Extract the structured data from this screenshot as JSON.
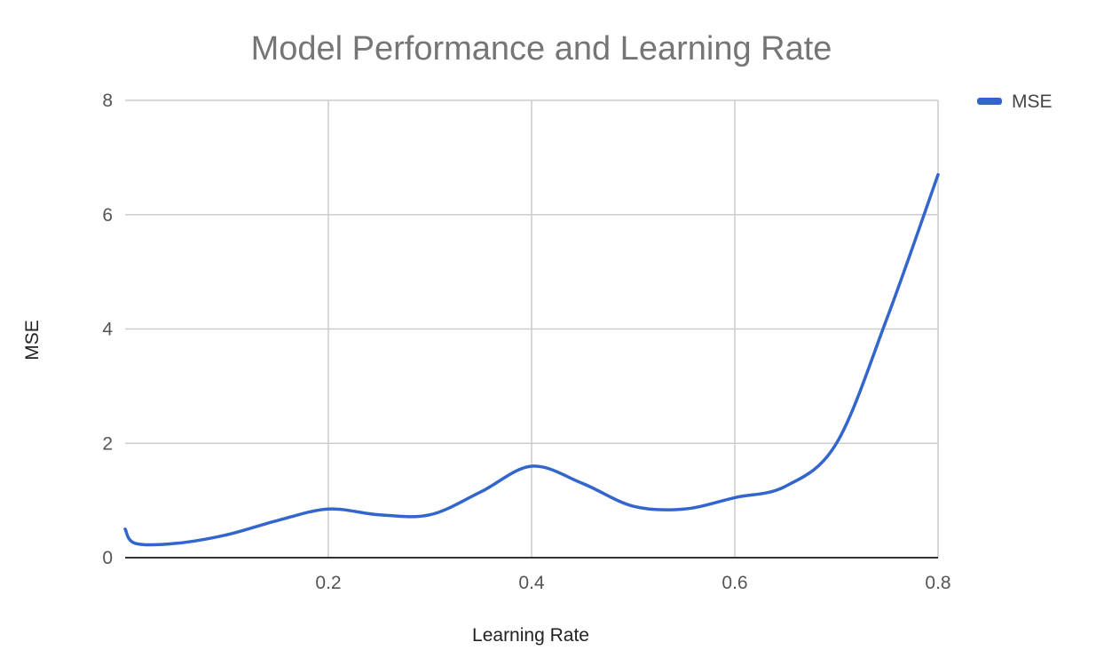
{
  "chart_data": {
    "type": "line",
    "title": "Model Performance and Learning Rate",
    "xlabel": "Learning Rate",
    "ylabel": "MSE",
    "xlim": [
      0,
      0.8
    ],
    "ylim": [
      0,
      8
    ],
    "x_ticks": [
      0.2,
      0.4,
      0.6,
      0.8
    ],
    "x_tick_labels": [
      "0.2",
      "0.4",
      "0.6",
      "0.8"
    ],
    "y_ticks": [
      0,
      2,
      4,
      6,
      8
    ],
    "y_tick_labels": [
      "0",
      "2",
      "4",
      "6",
      "8"
    ],
    "grid": true,
    "legend_position": "top-right",
    "series": [
      {
        "name": "MSE",
        "color": "#3366cc",
        "x": [
          0.0,
          0.01,
          0.05,
          0.1,
          0.15,
          0.2,
          0.25,
          0.3,
          0.35,
          0.4,
          0.45,
          0.5,
          0.55,
          0.6,
          0.65,
          0.7,
          0.75,
          0.8
        ],
        "y": [
          0.5,
          0.25,
          0.25,
          0.4,
          0.65,
          0.85,
          0.75,
          0.75,
          1.15,
          1.6,
          1.3,
          0.9,
          0.85,
          1.05,
          1.25,
          2.0,
          4.2,
          6.7
        ]
      }
    ]
  }
}
